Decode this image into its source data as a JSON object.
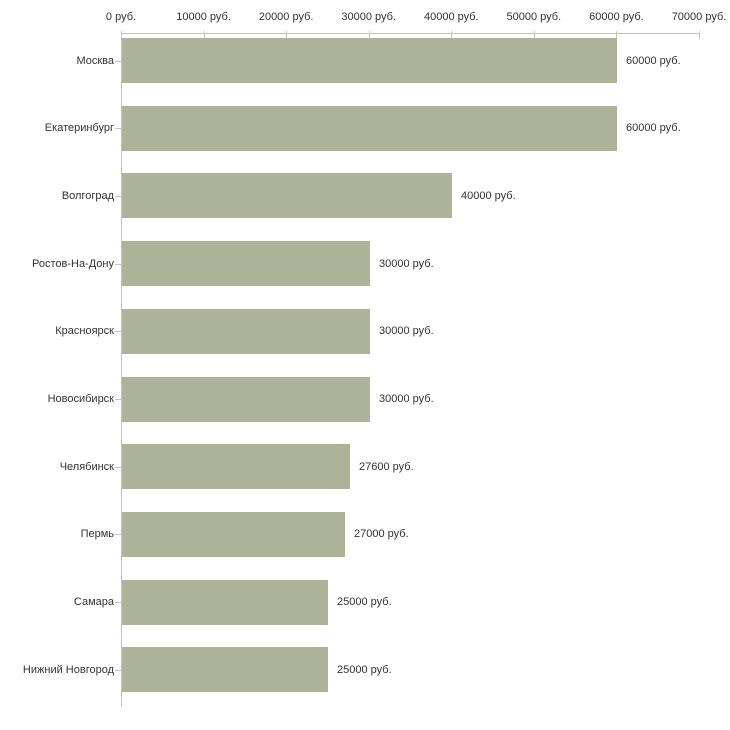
{
  "chart_data": {
    "type": "bar",
    "orientation": "horizontal",
    "title": "",
    "xlabel": "",
    "ylabel": "",
    "unit": "руб.",
    "categories": [
      "Москва",
      "Екатеринбург",
      "Волгоград",
      "Ростов-На-Дону",
      "Красноярск",
      "Новосибирск",
      "Челябинск",
      "Пермь",
      "Самара",
      "Нижний Новгород"
    ],
    "values": [
      60000,
      60000,
      40000,
      30000,
      30000,
      30000,
      27600,
      27000,
      25000,
      25000
    ],
    "value_labels": [
      "60000 руб.",
      "60000 руб.",
      "40000 руб.",
      "30000 руб.",
      "30000 руб.",
      "30000 руб.",
      "27600 руб.",
      "27000 руб.",
      "25000 руб.",
      "25000 руб."
    ],
    "x_ticks": [
      0,
      10000,
      20000,
      30000,
      40000,
      50000,
      60000,
      70000
    ],
    "x_tick_labels": [
      "0 руб.",
      "10000 руб.",
      "20000 руб.",
      "30000 руб.",
      "40000 руб.",
      "50000 руб.",
      "60000 руб.",
      "70000 руб."
    ],
    "xlim": [
      0,
      70000
    ],
    "grid": false,
    "legend": false,
    "colors": {
      "bar": "#adb399",
      "axis": "#c2c2c2",
      "tick": "#c9c9a2",
      "text": "#333333",
      "background": "#ffffff"
    }
  }
}
